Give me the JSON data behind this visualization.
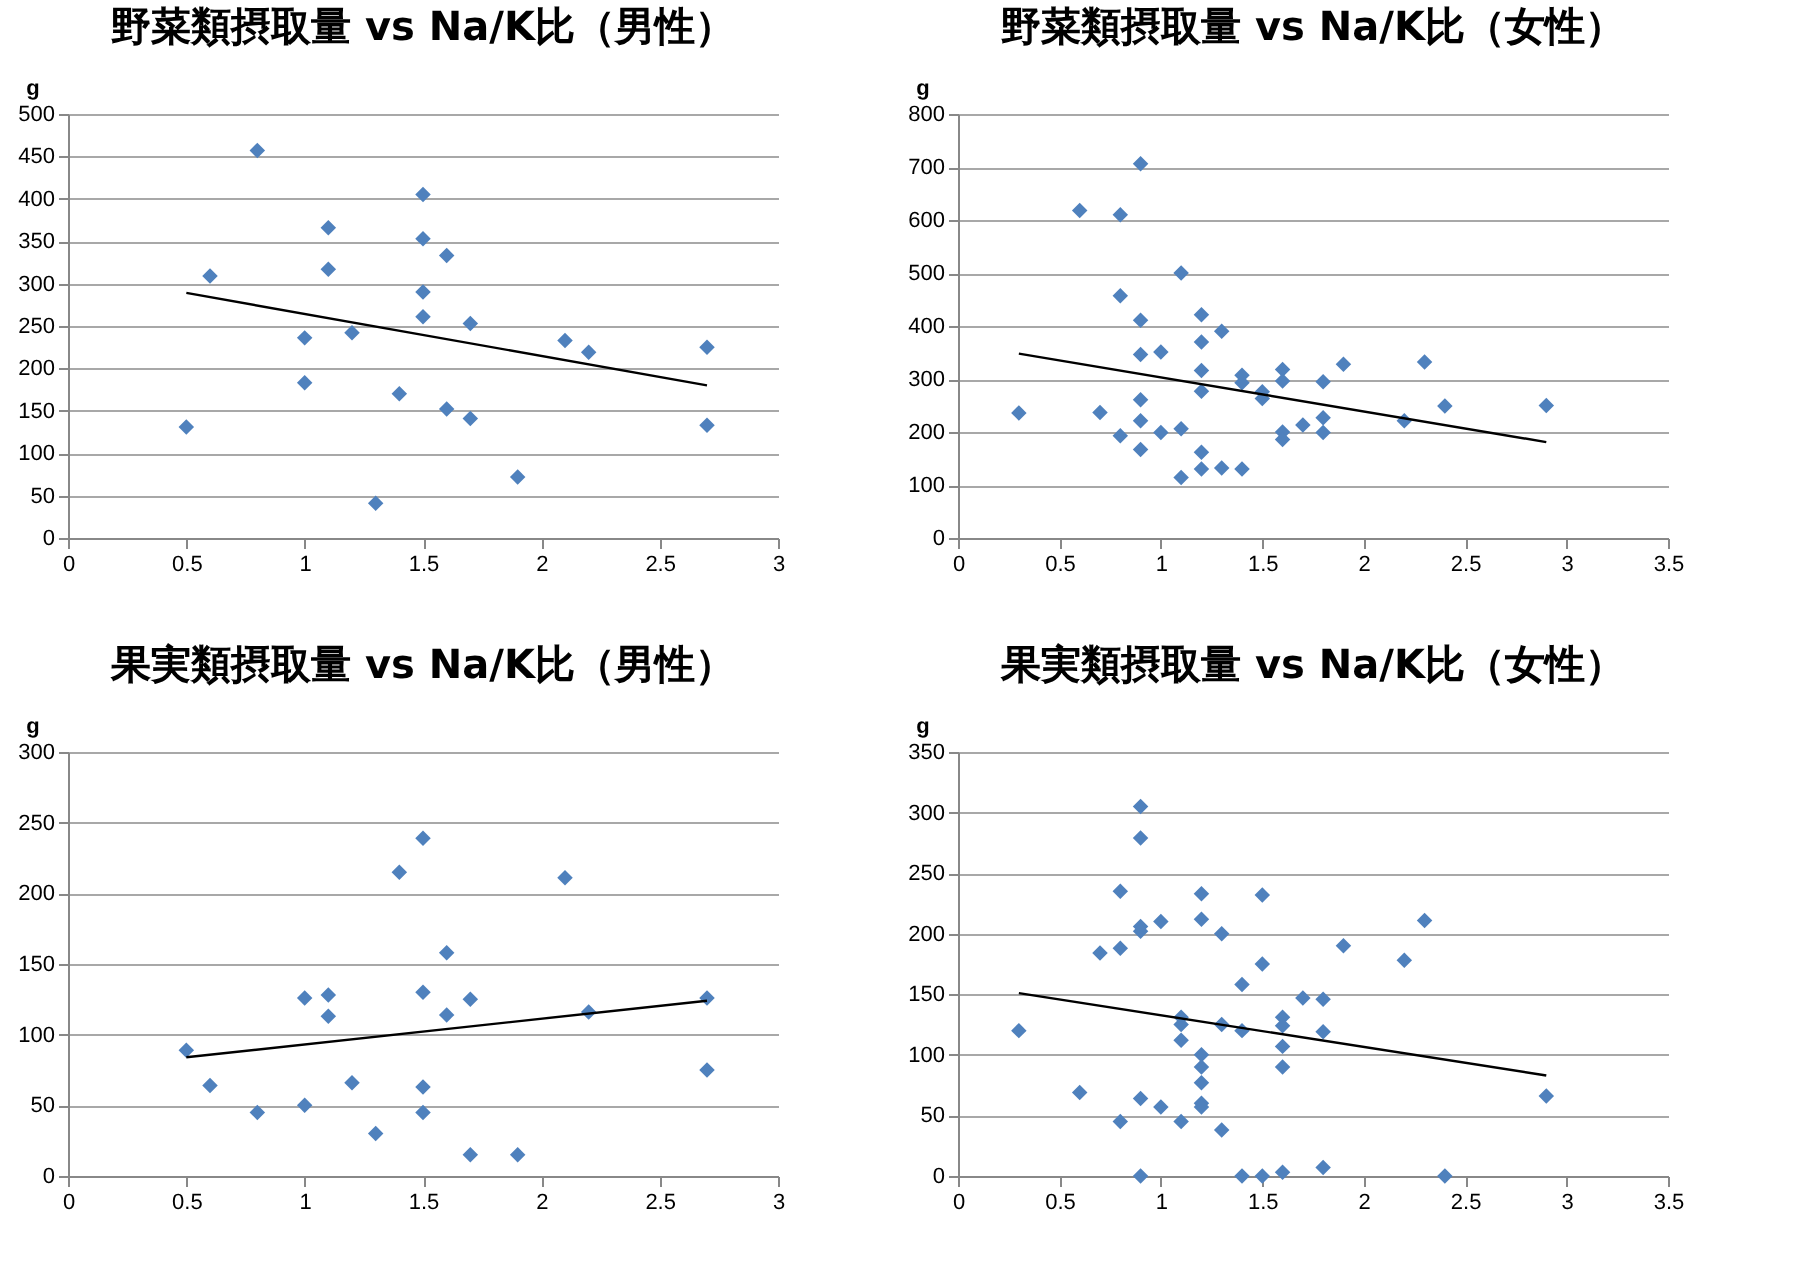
{
  "chart_data": [
    {
      "type": "scatter",
      "title": "野菜類摂取量 vs Na/K比（男性）",
      "ylabel": "g",
      "xlim": [
        0,
        3
      ],
      "xticks": [
        0,
        0.5,
        1,
        1.5,
        2,
        2.5,
        3
      ],
      "ylim": [
        0,
        500
      ],
      "yticks": [
        0,
        50,
        100,
        150,
        200,
        250,
        300,
        350,
        400,
        450,
        500
      ],
      "grid": "y",
      "legend": false,
      "series": [
        {
          "type": "scatter",
          "marker": "diamond",
          "color": "#4f81bd",
          "x": [
            0.5,
            0.6,
            0.8,
            1.0,
            1.0,
            1.1,
            1.1,
            1.2,
            1.3,
            1.4,
            1.5,
            1.5,
            1.5,
            1.5,
            1.6,
            1.6,
            1.7,
            1.7,
            1.9,
            2.1,
            2.2,
            2.7,
            2.7
          ],
          "values": [
            131,
            309,
            457,
            236,
            183,
            366,
            317,
            242,
            41,
            170,
            405,
            353,
            290,
            261,
            333,
            152,
            253,
            141,
            72,
            233,
            219,
            225,
            133
          ]
        },
        {
          "type": "line",
          "color": "#000000",
          "x": [
            0.5,
            2.7
          ],
          "values": [
            289,
            180
          ]
        }
      ]
    },
    {
      "type": "scatter",
      "title": "野菜類摂取量 vs Na/K比（女性）",
      "ylabel": "g",
      "xlim": [
        0,
        3.5
      ],
      "xticks": [
        0,
        0.5,
        1,
        1.5,
        2,
        2.5,
        3,
        3.5
      ],
      "ylim": [
        0,
        800
      ],
      "yticks": [
        0,
        100,
        200,
        300,
        400,
        500,
        600,
        700,
        800
      ],
      "grid": "y",
      "legend": false,
      "series": [
        {
          "type": "scatter",
          "marker": "diamond",
          "color": "#4f81bd",
          "x": [
            0.3,
            0.6,
            0.7,
            0.8,
            0.8,
            0.8,
            0.9,
            0.9,
            0.9,
            0.9,
            0.9,
            0.9,
            1.0,
            1.0,
            1.1,
            1.1,
            1.1,
            1.2,
            1.2,
            1.2,
            1.2,
            1.2,
            1.2,
            1.3,
            1.3,
            1.4,
            1.4,
            1.4,
            1.5,
            1.5,
            1.6,
            1.6,
            1.6,
            1.6,
            1.7,
            1.8,
            1.8,
            1.8,
            1.9,
            2.2,
            2.3,
            2.4,
            2.9
          ],
          "values": [
            236,
            618,
            237,
            610,
            457,
            193,
            706,
            411,
            346,
            261,
            221,
            167,
            351,
            199,
            500,
            206,
            114,
            421,
            370,
            316,
            277,
            162,
            130,
            390,
            132,
            307,
            293,
            130,
            276,
            263,
            318,
            296,
            200,
            186,
            213,
            295,
            227,
            199,
            328,
            221,
            332,
            249,
            250
          ]
        },
        {
          "type": "line",
          "color": "#000000",
          "x": [
            0.3,
            2.9
          ],
          "values": [
            348,
            181
          ]
        }
      ]
    },
    {
      "type": "scatter",
      "title": "果実類摂取量 vs Na/K比（男性）",
      "ylabel": "g",
      "xlim": [
        0,
        3
      ],
      "xticks": [
        0,
        0.5,
        1,
        1.5,
        2,
        2.5,
        3
      ],
      "ylim": [
        0,
        300
      ],
      "yticks": [
        0,
        50,
        100,
        150,
        200,
        250,
        300
      ],
      "grid": "y",
      "legend": false,
      "series": [
        {
          "type": "scatter",
          "marker": "diamond",
          "color": "#4f81bd",
          "x": [
            0.5,
            0.6,
            0.8,
            1.0,
            1.0,
            1.1,
            1.1,
            1.2,
            1.3,
            1.4,
            1.5,
            1.5,
            1.5,
            1.5,
            1.6,
            1.6,
            1.7,
            1.7,
            1.9,
            2.1,
            2.2,
            2.7,
            2.7
          ],
          "values": [
            89,
            64,
            45,
            126,
            50,
            128,
            113,
            66,
            30,
            215,
            239,
            130,
            63,
            45,
            158,
            114,
            125,
            15,
            15,
            211,
            116,
            126,
            75
          ]
        },
        {
          "type": "line",
          "color": "#000000",
          "x": [
            0.5,
            2.7
          ],
          "values": [
            84,
            124
          ]
        }
      ]
    },
    {
      "type": "scatter",
      "title": "果実類摂取量 vs Na/K比（女性）",
      "ylabel": "g",
      "xlim": [
        0,
        3.5
      ],
      "xticks": [
        0,
        0.5,
        1,
        1.5,
        2,
        2.5,
        3,
        3.5
      ],
      "ylim": [
        0,
        350
      ],
      "yticks": [
        0,
        50,
        100,
        150,
        200,
        250,
        300,
        350
      ],
      "grid": "y",
      "legend": false,
      "series": [
        {
          "type": "scatter",
          "marker": "diamond",
          "color": "#4f81bd",
          "x": [
            0.3,
            0.6,
            0.7,
            0.8,
            0.8,
            0.8,
            0.9,
            0.9,
            0.9,
            0.9,
            0.9,
            0.9,
            1.0,
            1.0,
            1.1,
            1.1,
            1.1,
            1.1,
            1.2,
            1.2,
            1.2,
            1.2,
            1.2,
            1.2,
            1.2,
            1.3,
            1.3,
            1.3,
            1.4,
            1.4,
            1.4,
            1.5,
            1.5,
            1.5,
            1.6,
            1.6,
            1.6,
            1.6,
            1.6,
            1.7,
            1.8,
            1.8,
            1.8,
            1.9,
            2.2,
            2.3,
            2.4,
            2.9
          ],
          "values": [
            120,
            69,
            184,
            235,
            188,
            45,
            305,
            279,
            206,
            202,
            64,
            0,
            210,
            57,
            131,
            125,
            112,
            45,
            233,
            212,
            100,
            90,
            77,
            60,
            57,
            200,
            125,
            38,
            158,
            120,
            0,
            232,
            175,
            0,
            131,
            124,
            107,
            90,
            3,
            147,
            146,
            119,
            7,
            190,
            178,
            211,
            0,
            66
          ]
        },
        {
          "type": "line",
          "color": "#000000",
          "x": [
            0.3,
            2.9
          ],
          "values": [
            151,
            83
          ]
        }
      ]
    }
  ]
}
